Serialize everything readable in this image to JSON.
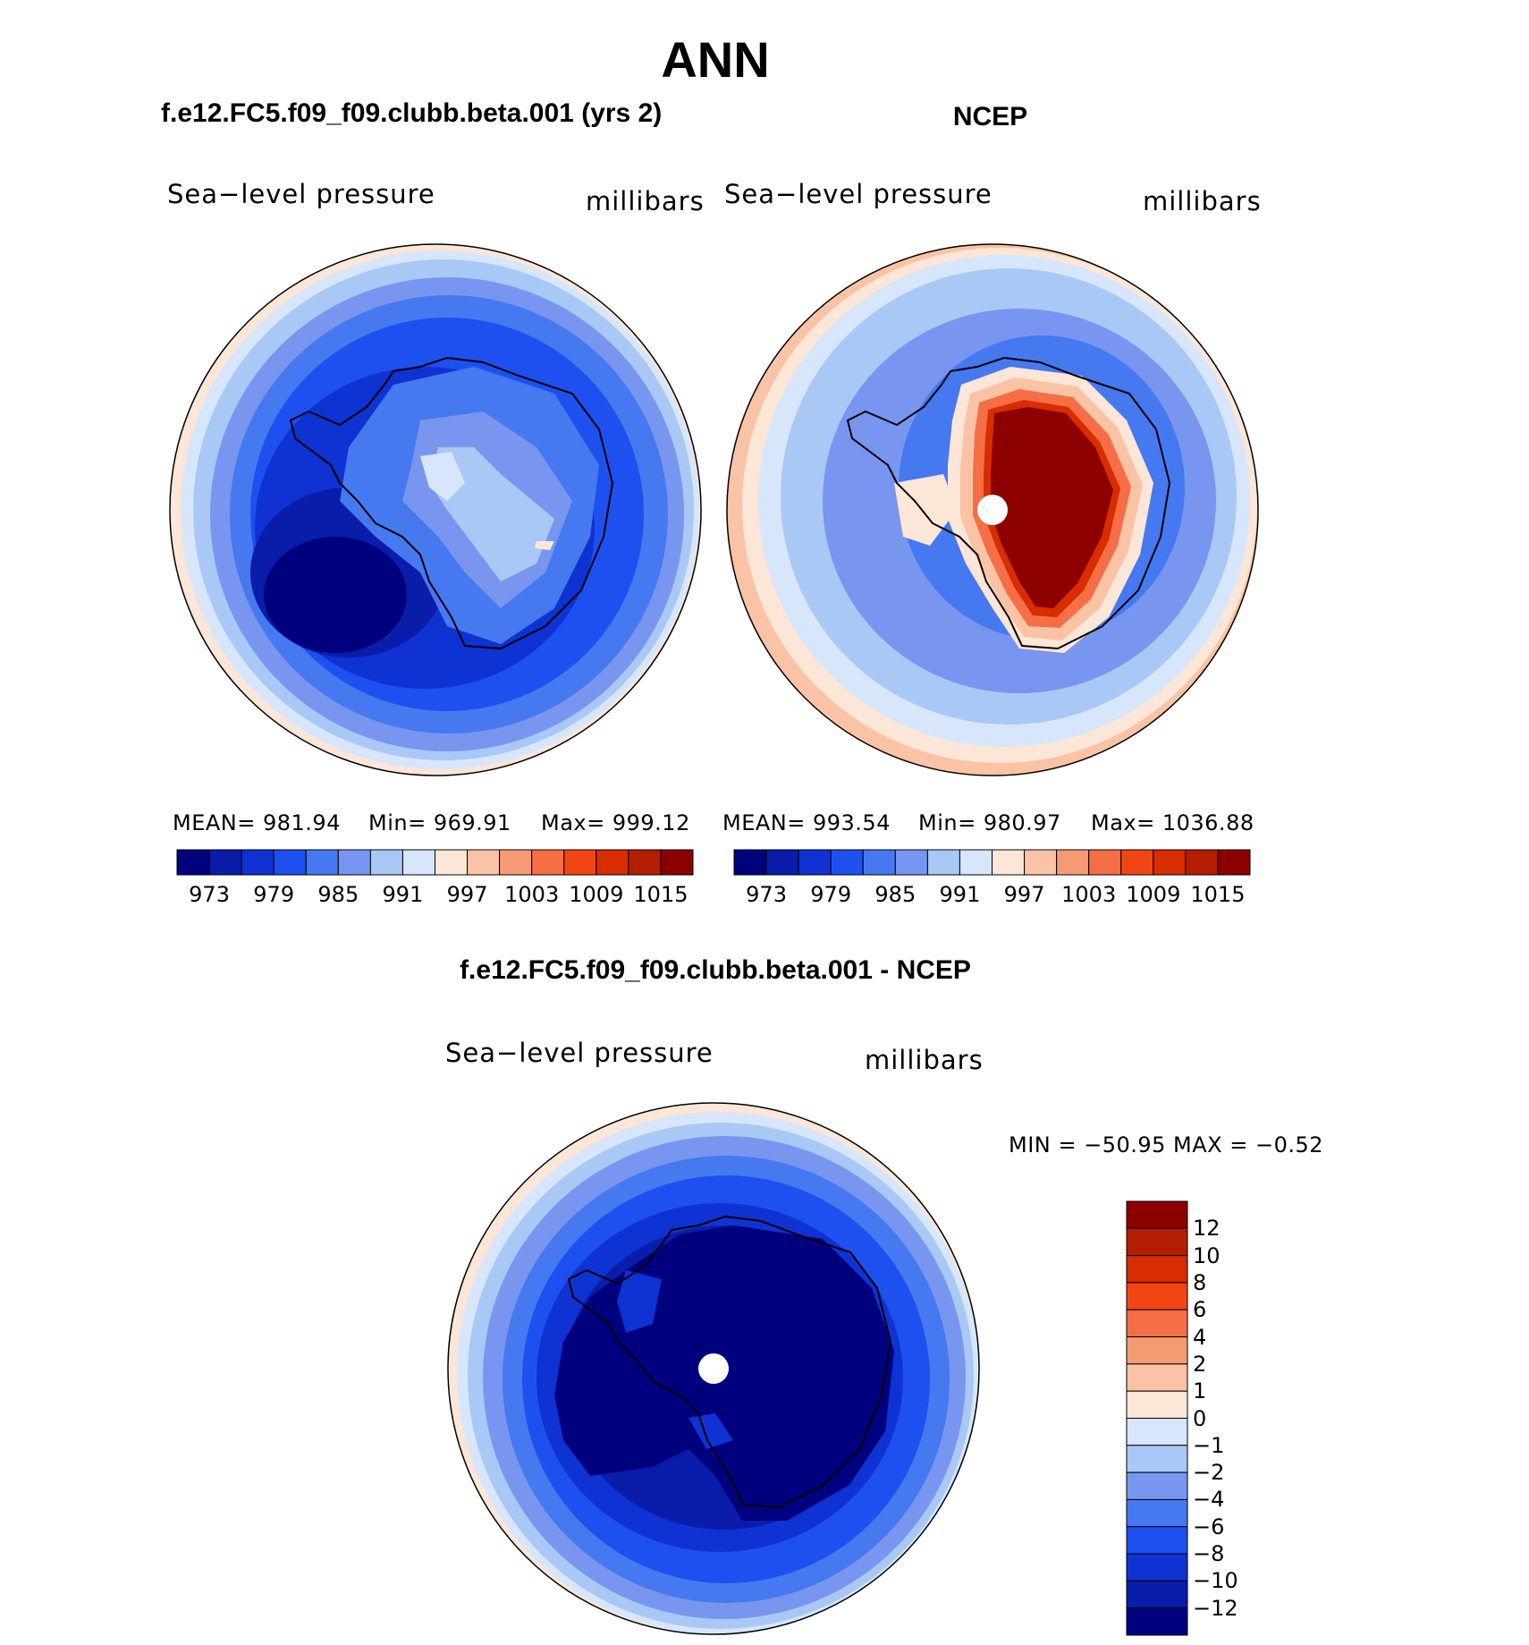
{
  "title": "ANN",
  "panels": {
    "model": {
      "subtitle": "f.e12.FC5.f09_f09.clubb.beta.001 (yrs 2)",
      "variable": "Sea−level pressure",
      "units": "millibars",
      "mean_label": "MEAN= 981.94",
      "min_label": "Min= 969.91",
      "max_label": "Max= 999.12",
      "mean": 981.94,
      "min": 969.91,
      "max": 999.12
    },
    "obs": {
      "subtitle": "NCEP",
      "variable": "Sea−level pressure",
      "units": "millibars",
      "mean_label": "MEAN= 993.54",
      "min_label": "Min= 980.97",
      "max_label": "Max= 1036.88",
      "mean": 993.54,
      "min": 980.97,
      "max": 1036.88
    },
    "diff": {
      "subtitle": "f.e12.FC5.f09_f09.clubb.beta.001 - NCEP",
      "variable": "Sea−level pressure",
      "units": "millibars",
      "minmax_label": "MIN = −50.95 MAX =   −0.52",
      "min": -50.95,
      "max": -0.52
    }
  },
  "colorbar_abs": {
    "ticks": [
      "973",
      "979",
      "985",
      "991",
      "997",
      "1003",
      "1009",
      "1015"
    ],
    "levels": [
      970,
      973,
      976,
      979,
      982,
      985,
      988,
      991,
      994,
      997,
      1000,
      1003,
      1006,
      1009,
      1012,
      1015
    ]
  },
  "colorbar_diff": {
    "ticks": [
      "12",
      "10",
      "8",
      "6",
      "4",
      "2",
      "1",
      "0",
      "−1",
      "−2",
      "−4",
      "−6",
      "−8",
      "−10",
      "−12"
    ],
    "levels": [
      12,
      10,
      8,
      6,
      4,
      2,
      1,
      0,
      -1,
      -2,
      -4,
      -6,
      -8,
      -10,
      -12
    ]
  },
  "palette": [
    "#00007f",
    "#0a1caa",
    "#0f32d2",
    "#1e50f0",
    "#4678f0",
    "#7896f0",
    "#aac8f5",
    "#d7e6fa",
    "#fce6d7",
    "#fac3a5",
    "#f59b73",
    "#f56e46",
    "#f04614",
    "#d72d00",
    "#b41e00",
    "#8c0000"
  ],
  "colorbar_abs_note": "",
  "line_color": "#000000"
}
